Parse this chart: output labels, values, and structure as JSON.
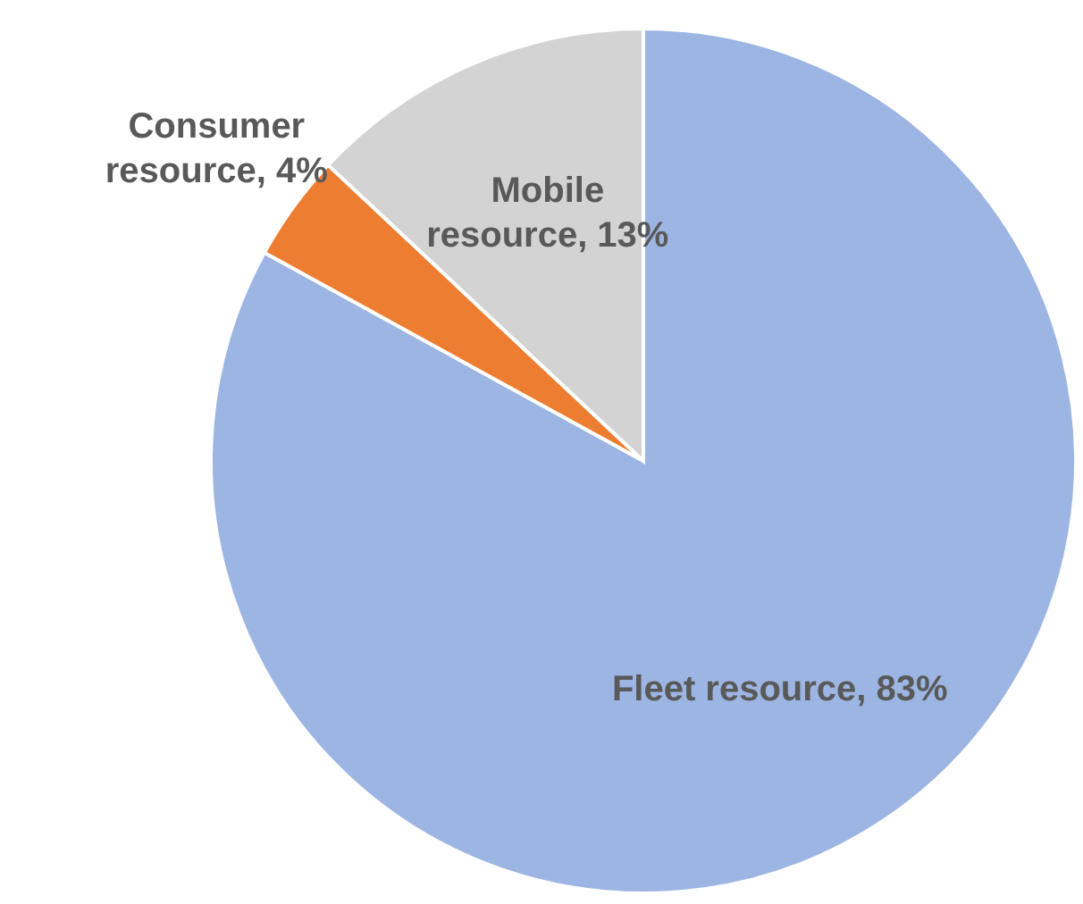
{
  "chart_data": {
    "type": "pie",
    "categories": [
      "Fleet resource",
      "Consumer resource",
      "Mobile resource"
    ],
    "values": [
      83,
      4,
      13
    ],
    "colors": [
      "#9db5e3",
      "#ed7d31",
      "#d3d3d3"
    ],
    "value_labels": [
      "83%",
      "4%",
      "13%"
    ]
  }
}
